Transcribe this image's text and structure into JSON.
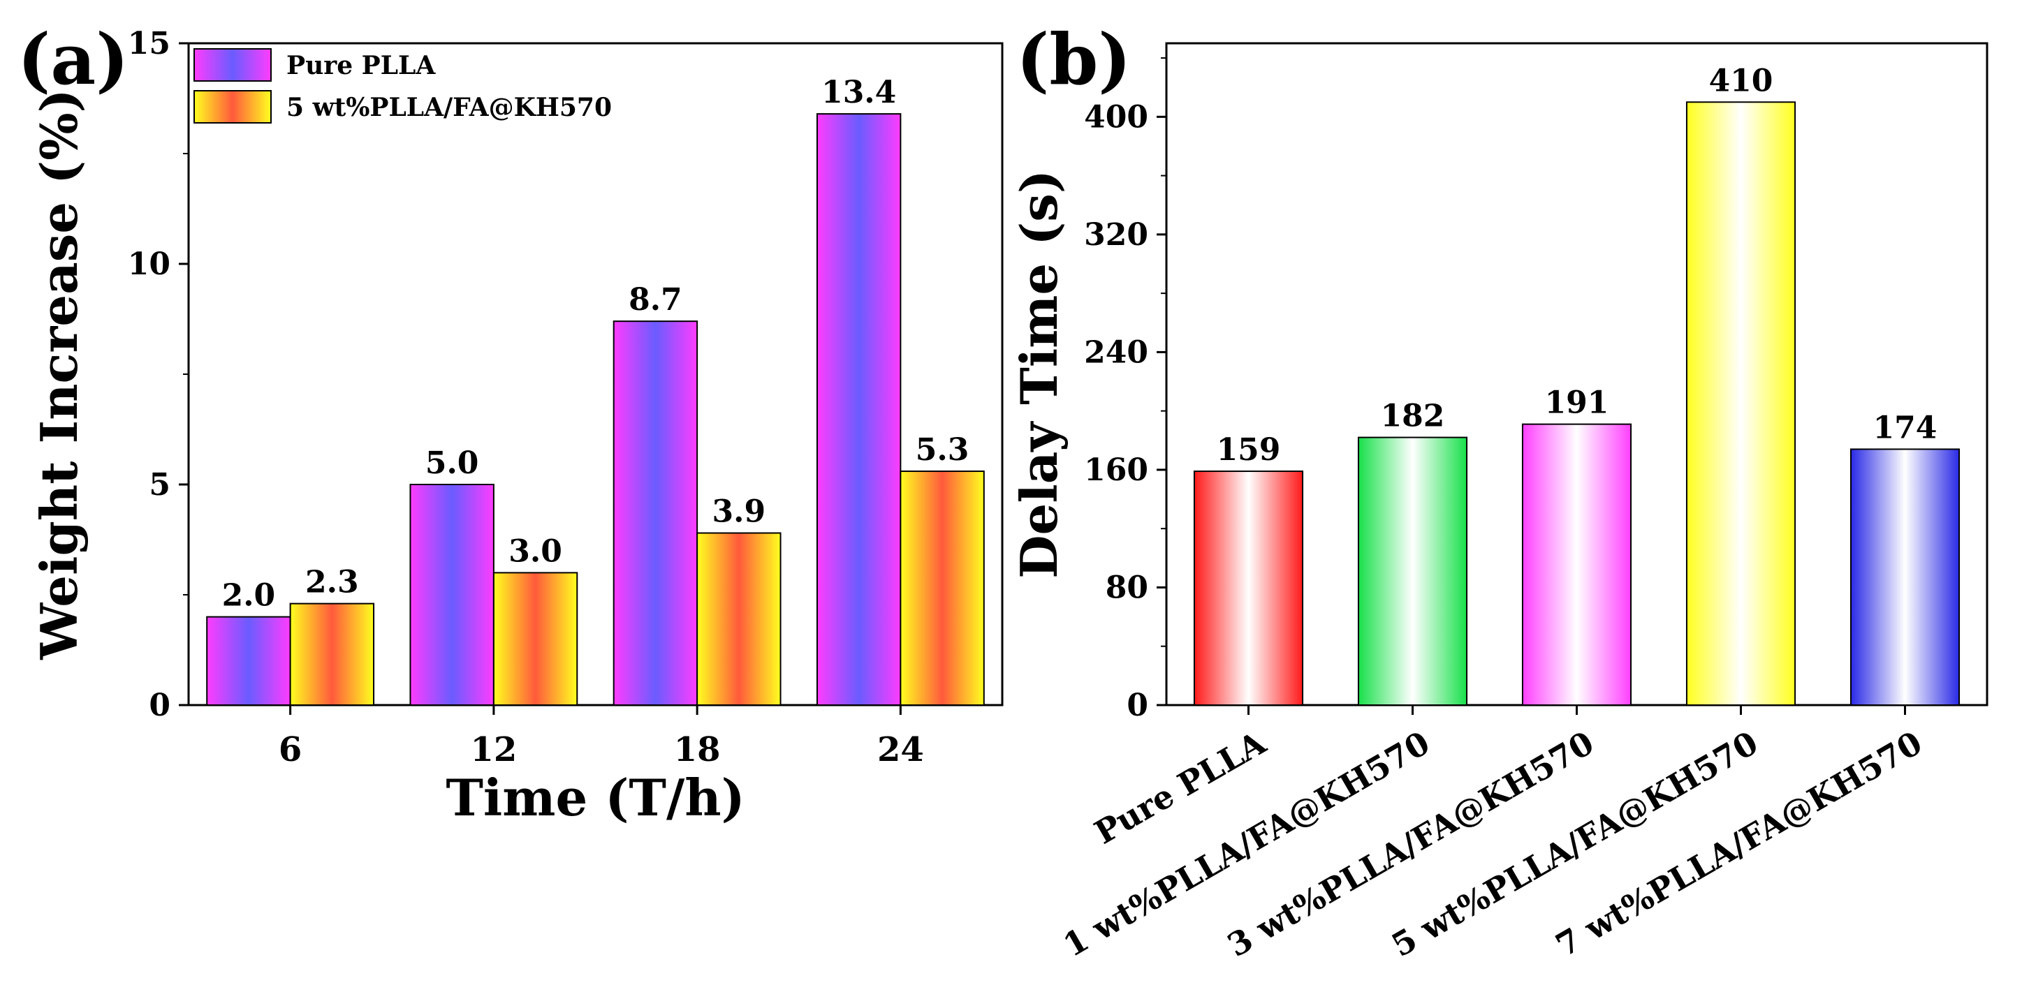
{
  "chart_data": [
    {
      "panel": "(a)",
      "type": "bar",
      "xlabel": "Time (T/h)",
      "ylabel": "Weight Increase (%)",
      "ylim": [
        0,
        15
      ],
      "yticks": [
        0,
        5,
        10,
        15
      ],
      "categories": [
        "6",
        "12",
        "18",
        "24"
      ],
      "series": [
        {
          "name": "Pure PLLA",
          "values": [
            2.0,
            5.0,
            8.7,
            13.4
          ],
          "labels": [
            "2.0",
            "5.0",
            "8.7",
            "13.4"
          ],
          "colors": [
            "#ff3cff",
            "#6a5cff"
          ]
        },
        {
          "name": "5 wt%PLLA/FA@KH570",
          "values": [
            2.3,
            3.0,
            3.9,
            5.3
          ],
          "labels": [
            "2.3",
            "3.0",
            "3.9",
            "5.3"
          ],
          "colors": [
            "#ffff20",
            "#ff5a3c"
          ]
        }
      ],
      "legend": "top-left"
    },
    {
      "panel": "(b)",
      "type": "bar",
      "xlabel": "",
      "ylabel": "Delay Time (s)",
      "ylim": [
        0,
        450
      ],
      "yticks": [
        0,
        80,
        160,
        240,
        320,
        400
      ],
      "categories": [
        "Pure PLLA",
        "1 wt%PLLA/FA@KH570",
        "3 wt%PLLA/FA@KH570",
        "5 wt%PLLA/FA@KH570",
        "7 wt%PLLA/FA@KH570"
      ],
      "values": [
        159,
        182,
        191,
        410,
        174
      ],
      "labels": [
        "159",
        "182",
        "191",
        "410",
        "174"
      ],
      "colors": [
        "#ff1a1a",
        "#18e04a",
        "#ff40ff",
        "#ffff20",
        "#2a2ae6"
      ]
    }
  ]
}
